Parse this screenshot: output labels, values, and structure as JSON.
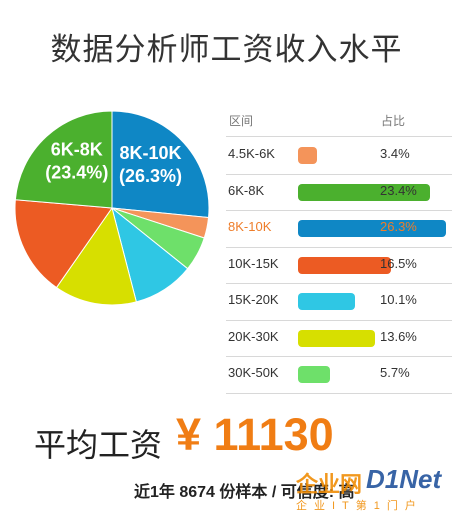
{
  "title": "数据分析师工资收入水平",
  "table": {
    "header_range": "区间",
    "header_share": "占比"
  },
  "chart_data": {
    "type": "pie",
    "categories": [
      "4.5K-6K",
      "6K-8K",
      "8K-10K",
      "10K-15K",
      "15K-20K",
      "20K-30K",
      "30K-50K"
    ],
    "values": [
      3.4,
      23.4,
      26.3,
      16.5,
      10.1,
      13.6,
      5.7
    ],
    "percent_labels": [
      "3.4%",
      "23.4%",
      "26.3%",
      "16.5%",
      "10.1%",
      "13.6%",
      "5.7%"
    ],
    "colors": [
      "#f4945a",
      "#4bb02e",
      "#0f87c5",
      "#ec5b23",
      "#2fc7e4",
      "#d7df00",
      "#6ee06a"
    ],
    "highlight": "8K-10K",
    "pie_labels": [
      {
        "category": "6K-8K",
        "line1": "6K-8K",
        "line2": "(23.4%)"
      },
      {
        "category": "8K-10K",
        "line1": "8K-10K",
        "line2": "(26.3%)"
      }
    ]
  },
  "average": {
    "label": "平均工资",
    "value": "¥ 11130"
  },
  "footer": "近1年 8674 份样本 / 可信度: 高",
  "watermark": {
    "text1": "企业网",
    "text2": "D1Net",
    "text3": "企业IT第1门户"
  }
}
